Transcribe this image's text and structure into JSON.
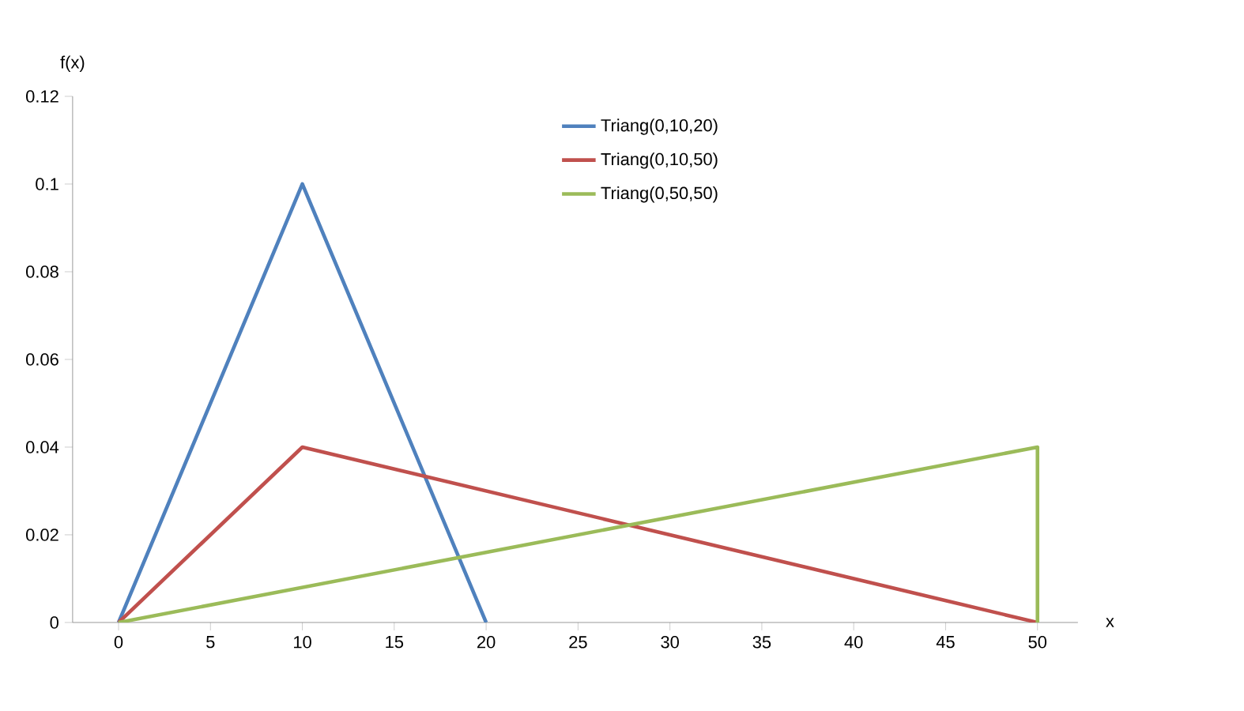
{
  "chart_data": {
    "type": "line",
    "xlabel": "x",
    "ylabel": "f(x)",
    "xlim": [
      -2.5,
      52.2
    ],
    "ylim": [
      0,
      0.12
    ],
    "xticks": [
      0,
      5,
      10,
      15,
      20,
      25,
      30,
      35,
      40,
      45,
      50
    ],
    "yticks": [
      0,
      0.02,
      0.04,
      0.06,
      0.08,
      0.1,
      0.12
    ],
    "legend": "top right",
    "series": [
      {
        "name": "Triang(0,10,20)",
        "color": "#4f81bd",
        "x": [
          0,
          10,
          20
        ],
        "values": [
          0,
          0.1,
          0
        ]
      },
      {
        "name": "Triang(0,10,50)",
        "color": "#c0504d",
        "x": [
          0,
          10,
          50
        ],
        "values": [
          0,
          0.04,
          0
        ]
      },
      {
        "name": "Triang(0,50,50)",
        "color": "#9bbb59",
        "x": [
          0,
          50,
          50
        ],
        "values": [
          0,
          0.04,
          0
        ]
      }
    ]
  }
}
